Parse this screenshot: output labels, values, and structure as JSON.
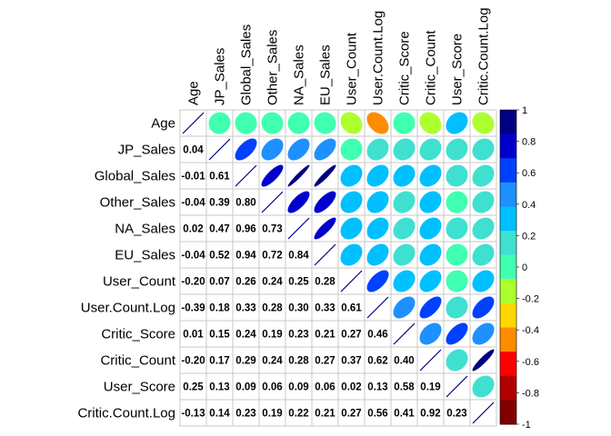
{
  "chart_data": {
    "type": "heatmap",
    "subtype": "correlation-matrix-mixed",
    "upper_method": "ellipse",
    "lower_method": "number",
    "variables": [
      "Age",
      "JP_Sales",
      "Global_Sales",
      "Other_Sales",
      "NA_Sales",
      "EU_Sales",
      "User_Count",
      "User.Count.Log",
      "Critic_Score",
      "Critic_Count",
      "User_Score",
      "Critic.Count.Log"
    ],
    "lower_labels": [
      [],
      [
        "0.04"
      ],
      [
        "-0.01",
        "0.61"
      ],
      [
        "-0.04",
        "0.39",
        "0.80"
      ],
      [
        "0.02",
        "0.47",
        "0.96",
        "0.73"
      ],
      [
        "-0.04",
        "0.52",
        "0.94",
        "0.72",
        "0.84"
      ],
      [
        "-0.20",
        "0.07",
        "0.26",
        "0.24",
        "0.25",
        "0.28"
      ],
      [
        "-0.39",
        "0.18",
        "0.33",
        "0.28",
        "0.30",
        "0.33",
        "0.61"
      ],
      [
        "0.01",
        "0.15",
        "0.24",
        "0.19",
        "0.23",
        "0.21",
        "0.27",
        "0.46"
      ],
      [
        "-0.20",
        "0.17",
        "0.29",
        "0.24",
        "0.28",
        "0.27",
        "0.37",
        "0.62",
        "0.40"
      ],
      [
        "0.25",
        "0.13",
        "0.09",
        "0.06",
        "0.09",
        "0.06",
        "0.02",
        "0.13",
        "0.58",
        "0.19"
      ],
      [
        "-0.13",
        "0.14",
        "0.23",
        "0.19",
        "0.22",
        "0.21",
        "0.27",
        "0.56",
        "0.41",
        "0.92",
        "0.23"
      ]
    ],
    "colorbar": {
      "ticks": [
        "1",
        "0.8",
        "0.6",
        "0.4",
        "0.2",
        "0",
        "-0.2",
        "-0.4",
        "-0.6",
        "-0.8",
        "-1"
      ],
      "range": [
        -1,
        1
      ],
      "colors": [
        "#000080",
        "#0000CD",
        "#0040FF",
        "#1E90FF",
        "#00C0FF",
        "#40E0D0",
        "#40FFB0",
        "#ADFF2F",
        "#FFD700",
        "#FF8C00",
        "#FF0000",
        "#B00000",
        "#800000"
      ]
    }
  }
}
